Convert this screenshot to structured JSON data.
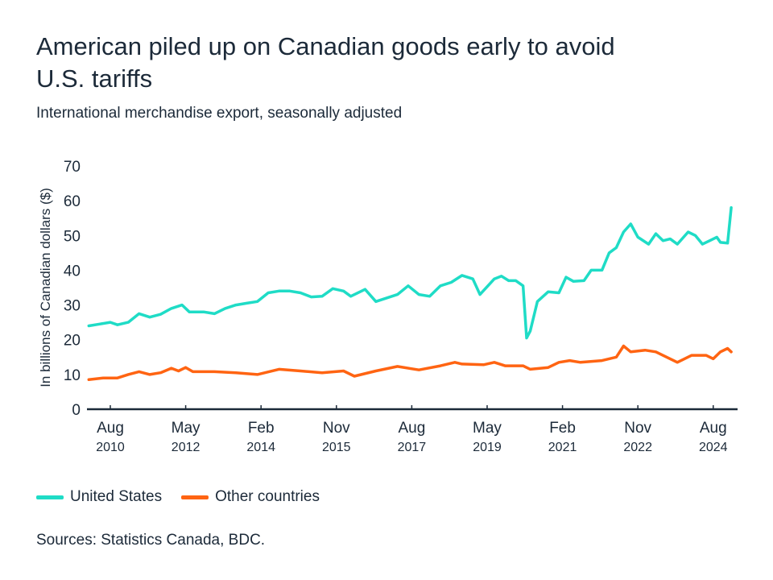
{
  "title": "American piled up on Canadian goods early to avoid U.S. tariffs",
  "subtitle": "International merchandise export, seasonally adjusted",
  "source": "Sources: Statistics Canada, BDC.",
  "colors": {
    "united_states": "#1fdcc6",
    "other_countries": "#ff6412",
    "text": "#1c2a39",
    "axis": "#1c2a39"
  },
  "chart_data": {
    "type": "line",
    "ylabel": "In billions of Canadian dollars ($)",
    "ylim": [
      0,
      70
    ],
    "yticks": [
      "0",
      "10",
      "20",
      "30",
      "40",
      "50",
      "60",
      "70"
    ],
    "xlim": [
      "2010-02",
      "2025-01"
    ],
    "xticks": [
      {
        "date": "2010-08",
        "month": "Aug",
        "year": "2010"
      },
      {
        "date": "2012-05",
        "month": "May",
        "year": "2012"
      },
      {
        "date": "2014-02",
        "month": "Feb",
        "year": "2014"
      },
      {
        "date": "2015-11",
        "month": "Nov",
        "year": "2015"
      },
      {
        "date": "2017-08",
        "month": "Aug",
        "year": "2017"
      },
      {
        "date": "2019-05",
        "month": "May",
        "year": "2019"
      },
      {
        "date": "2021-02",
        "month": "Feb",
        "year": "2021"
      },
      {
        "date": "2022-11",
        "month": "Nov",
        "year": "2022"
      },
      {
        "date": "2024-08",
        "month": "Aug",
        "year": "2024"
      }
    ],
    "grid": false,
    "legend_placement": "bottom-left",
    "series": [
      {
        "name": "United States",
        "color": "#1fdcc6",
        "points": [
          [
            "2010-02",
            24
          ],
          [
            "2010-05",
            24.5
          ],
          [
            "2010-08",
            25
          ],
          [
            "2010-10",
            24.3
          ],
          [
            "2011-01",
            25
          ],
          [
            "2011-04",
            27.5
          ],
          [
            "2011-07",
            26.5
          ],
          [
            "2011-10",
            27.3
          ],
          [
            "2012-01",
            29
          ],
          [
            "2012-04",
            30
          ],
          [
            "2012-06",
            28
          ],
          [
            "2012-10",
            28
          ],
          [
            "2013-01",
            27.5
          ],
          [
            "2013-04",
            29
          ],
          [
            "2013-07",
            30
          ],
          [
            "2013-10",
            30.5
          ],
          [
            "2014-01",
            31
          ],
          [
            "2014-04",
            33.5
          ],
          [
            "2014-07",
            34
          ],
          [
            "2014-10",
            34
          ],
          [
            "2015-01",
            33.5
          ],
          [
            "2015-04",
            32.3
          ],
          [
            "2015-07",
            32.5
          ],
          [
            "2015-10",
            34.7
          ],
          [
            "2016-01",
            34
          ],
          [
            "2016-03",
            32.5
          ],
          [
            "2016-07",
            34.5
          ],
          [
            "2016-10",
            31
          ],
          [
            "2017-01",
            32
          ],
          [
            "2017-04",
            33
          ],
          [
            "2017-07",
            35.5
          ],
          [
            "2017-10",
            33
          ],
          [
            "2018-01",
            32.5
          ],
          [
            "2018-04",
            35.5
          ],
          [
            "2018-07",
            36.5
          ],
          [
            "2018-10",
            38.5
          ],
          [
            "2019-01",
            37.5
          ],
          [
            "2019-03",
            33
          ],
          [
            "2019-07",
            37.5
          ],
          [
            "2019-09",
            38.3
          ],
          [
            "2019-11",
            37
          ],
          [
            "2020-01",
            37
          ],
          [
            "2020-03",
            35.5
          ],
          [
            "2020-04",
            20.5
          ],
          [
            "2020-05",
            22.5
          ],
          [
            "2020-07",
            31
          ],
          [
            "2020-10",
            33.8
          ],
          [
            "2021-01",
            33.5
          ],
          [
            "2021-03",
            38
          ],
          [
            "2021-05",
            36.8
          ],
          [
            "2021-08",
            37
          ],
          [
            "2021-10",
            40
          ],
          [
            "2022-01",
            40
          ],
          [
            "2022-03",
            45
          ],
          [
            "2022-05",
            46.5
          ],
          [
            "2022-07",
            51
          ],
          [
            "2022-09",
            53.3
          ],
          [
            "2022-11",
            49.5
          ],
          [
            "2023-02",
            47.5
          ],
          [
            "2023-04",
            50.5
          ],
          [
            "2023-06",
            48.5
          ],
          [
            "2023-08",
            49
          ],
          [
            "2023-10",
            47.5
          ],
          [
            "2024-01",
            51
          ],
          [
            "2024-03",
            50
          ],
          [
            "2024-05",
            47.5
          ],
          [
            "2024-07",
            48.5
          ],
          [
            "2024-09",
            49.5
          ],
          [
            "2024-10",
            48
          ],
          [
            "2024-12",
            47.8
          ],
          [
            "2025-01",
            58
          ]
        ]
      },
      {
        "name": "Other countries",
        "color": "#ff6412",
        "points": [
          [
            "2010-02",
            8.5
          ],
          [
            "2010-06",
            9
          ],
          [
            "2010-10",
            9
          ],
          [
            "2011-01",
            10
          ],
          [
            "2011-04",
            10.8
          ],
          [
            "2011-07",
            10
          ],
          [
            "2011-10",
            10.5
          ],
          [
            "2012-01",
            11.8
          ],
          [
            "2012-03",
            11
          ],
          [
            "2012-05",
            12
          ],
          [
            "2012-07",
            10.8
          ],
          [
            "2013-01",
            10.8
          ],
          [
            "2013-07",
            10.5
          ],
          [
            "2014-01",
            10
          ],
          [
            "2014-07",
            11.5
          ],
          [
            "2015-01",
            11
          ],
          [
            "2015-07",
            10.5
          ],
          [
            "2016-01",
            11
          ],
          [
            "2016-04",
            9.5
          ],
          [
            "2016-10",
            11
          ],
          [
            "2017-04",
            12.3
          ],
          [
            "2017-10",
            11.3
          ],
          [
            "2018-04",
            12.5
          ],
          [
            "2018-08",
            13.5
          ],
          [
            "2018-10",
            13
          ],
          [
            "2019-04",
            12.8
          ],
          [
            "2019-07",
            13.5
          ],
          [
            "2019-10",
            12.5
          ],
          [
            "2020-03",
            12.5
          ],
          [
            "2020-05",
            11.5
          ],
          [
            "2020-10",
            12
          ],
          [
            "2021-01",
            13.5
          ],
          [
            "2021-04",
            14
          ],
          [
            "2021-07",
            13.5
          ],
          [
            "2022-01",
            14
          ],
          [
            "2022-05",
            15
          ],
          [
            "2022-07",
            18.2
          ],
          [
            "2022-09",
            16.5
          ],
          [
            "2023-01",
            17
          ],
          [
            "2023-04",
            16.5
          ],
          [
            "2023-10",
            13.5
          ],
          [
            "2024-02",
            15.5
          ],
          [
            "2024-06",
            15.5
          ],
          [
            "2024-08",
            14.5
          ],
          [
            "2024-10",
            16.5
          ],
          [
            "2024-12",
            17.5
          ],
          [
            "2025-01",
            16.5
          ]
        ]
      }
    ]
  }
}
